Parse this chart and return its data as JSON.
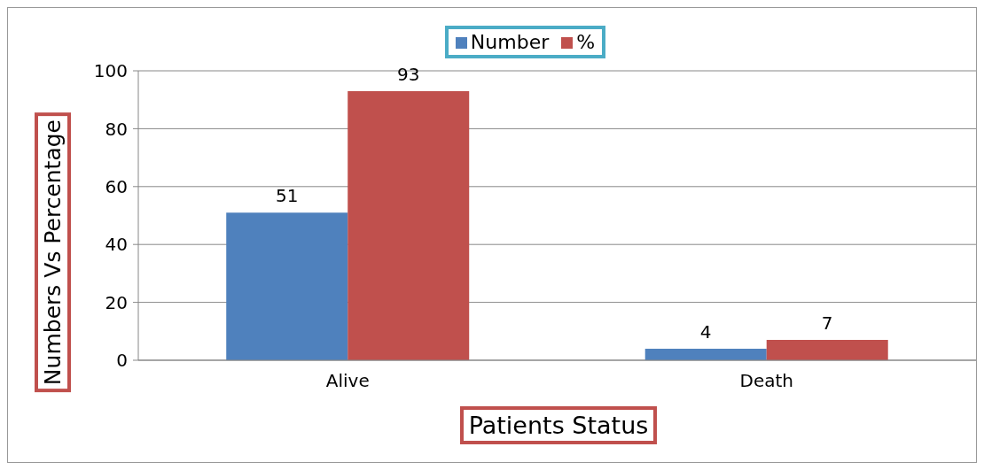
{
  "chart_data": {
    "type": "bar",
    "xlabel": "Patients Status",
    "ylabel": "Numbers Vs Percentage",
    "categories": [
      "Alive",
      "Death"
    ],
    "series": [
      {
        "name": "Number",
        "color": "#4f81bd",
        "values": [
          51,
          4
        ]
      },
      {
        "name": "%",
        "color": "#c0504d",
        "values": [
          93,
          7
        ]
      }
    ],
    "ylim": [
      0,
      100
    ],
    "yticks": [
      0,
      20,
      40,
      60,
      80,
      100
    ],
    "grid": "y",
    "legend": "top",
    "data_labels": true
  }
}
